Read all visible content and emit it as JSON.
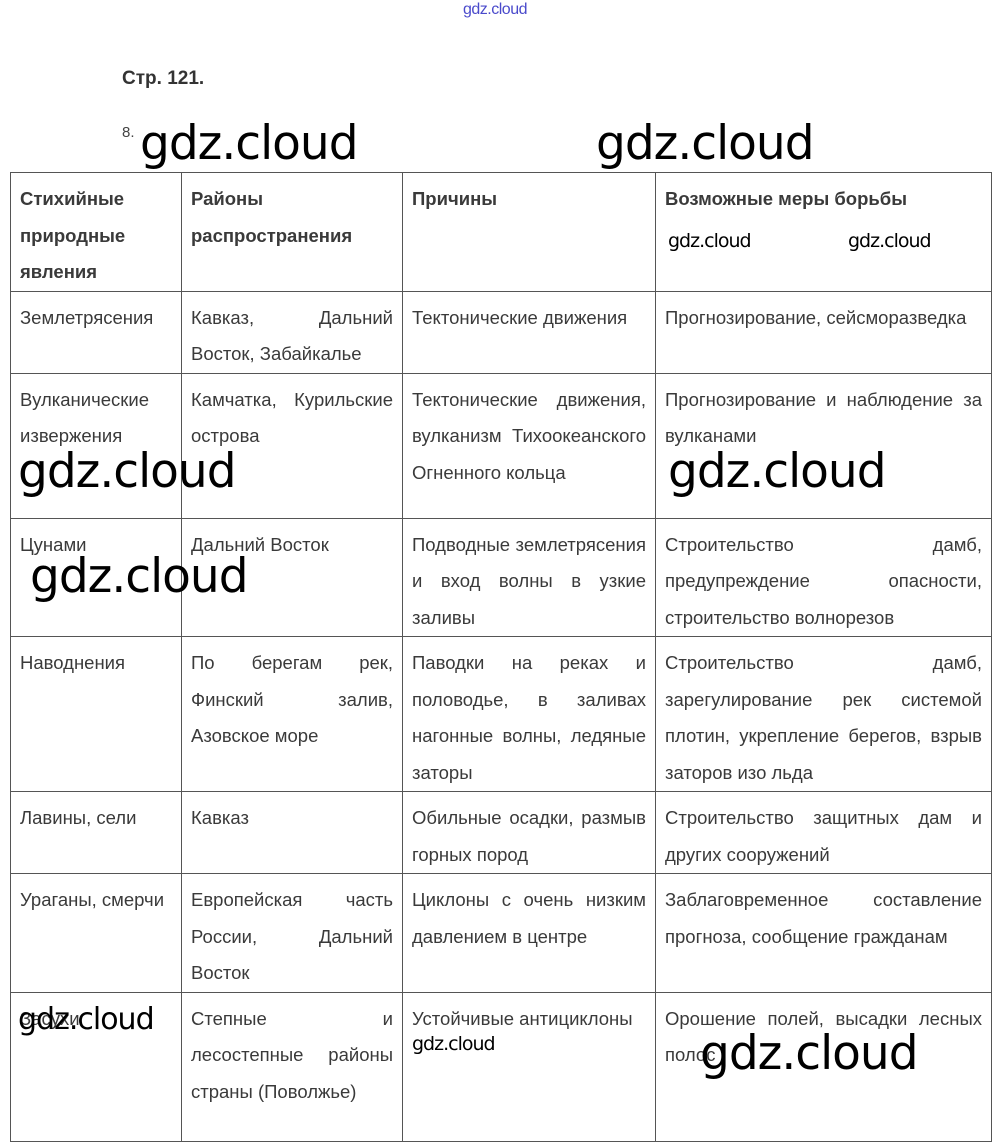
{
  "site_link": "gdz.cloud",
  "page_ref": "Стр. 121.",
  "task_number": "8.",
  "watermark": "gdz.cloud",
  "table": {
    "headers": [
      "Стихийные природные явления",
      "Районы распространения",
      "Причины",
      "Возможные меры борьбы"
    ],
    "rows": [
      [
        "Землетрясения",
        "Кавказ, Дальний Восток, Забайкалье",
        "Тектонические движения",
        "Прогнозирование, сейсморазведка"
      ],
      [
        "Вулканические извержения",
        "Камчатка, Курильские острова",
        "Тектонические движения, вулканизм Тихоокеанского Огненного кольца",
        "Прогнозирование и наблюдение за вулканами"
      ],
      [
        "Цунами",
        "Дальний Восток",
        "Подводные землетрясения и вход волны в узкие заливы",
        "Строительство дамб, предупреждение опасности, строительство волнорезов"
      ],
      [
        "Наводнения",
        "По берегам рек, Финский залив, Азовское море",
        "Паводки на реках и половодье, в заливах нагонные волны, ледяные заторы",
        "Строительство дамб, зарегулирование рек системой плотин, укрепление берегов, взрыв заторов изо льда"
      ],
      [
        "Лавины, сели",
        "Кавказ",
        "Обильные осадки, размыв горных пород",
        "Строительство защитных дам и других сооружений"
      ],
      [
        "Ураганы, смерчи",
        "Европейская часть России, Дальний Восток",
        "Циклоны с очень низким давлением в центре",
        "Заблаговременное составление прогноза, сообщение гражданам"
      ],
      [
        "Засухи",
        "Степные и лесостепные районы страны (Поволжье)",
        "Устойчивые антициклоны",
        "Орошение полей, высадки лесных полос"
      ]
    ]
  }
}
